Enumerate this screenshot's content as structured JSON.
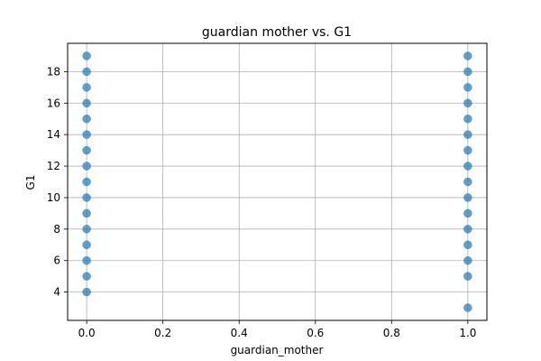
{
  "chart_data": {
    "type": "scatter",
    "title": "guardian mother vs. G1",
    "xlabel": "guardian_mother",
    "ylabel": "G1",
    "xlim": [
      -0.05,
      1.05
    ],
    "ylim": [
      2.2,
      19.8
    ],
    "x_ticks": [
      0.0,
      0.2,
      0.4,
      0.6,
      0.8,
      1.0
    ],
    "x_tick_labels": [
      "0.0",
      "0.2",
      "0.4",
      "0.6",
      "0.8",
      "1.0"
    ],
    "y_ticks": [
      4,
      6,
      8,
      10,
      12,
      14,
      16,
      18
    ],
    "y_tick_labels": [
      "4",
      "6",
      "8",
      "10",
      "12",
      "14",
      "16",
      "18"
    ],
    "grid": true,
    "marker_color": "#1f77b4",
    "marker_alpha": 0.7,
    "series": [
      {
        "x": [
          0,
          0,
          0,
          0,
          0,
          0,
          0,
          0,
          0,
          0,
          0,
          0,
          0,
          0,
          0,
          0,
          1,
          1,
          1,
          1,
          1,
          1,
          1,
          1,
          1,
          1,
          1,
          1,
          1,
          1,
          1,
          1
        ],
        "y": [
          4,
          5,
          6,
          7,
          8,
          9,
          10,
          11,
          12,
          13,
          14,
          15,
          16,
          17,
          18,
          19,
          3,
          5,
          6,
          7,
          8,
          9,
          10,
          11,
          12,
          13,
          14,
          15,
          16,
          17,
          18,
          19
        ]
      }
    ]
  }
}
